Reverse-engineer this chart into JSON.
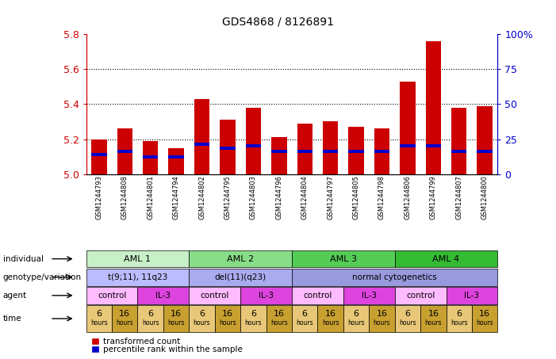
{
  "title": "GDS4868 / 8126891",
  "samples": [
    "GSM1244793",
    "GSM1244808",
    "GSM1244801",
    "GSM1244794",
    "GSM1244802",
    "GSM1244795",
    "GSM1244803",
    "GSM1244796",
    "GSM1244804",
    "GSM1244797",
    "GSM1244805",
    "GSM1244798",
    "GSM1244806",
    "GSM1244799",
    "GSM1244807",
    "GSM1244800"
  ],
  "red_values": [
    5.2,
    5.26,
    5.19,
    5.15,
    5.43,
    5.31,
    5.38,
    5.21,
    5.29,
    5.3,
    5.27,
    5.26,
    5.53,
    5.76,
    5.38,
    5.39
  ],
  "blue_values": [
    5.11,
    5.13,
    5.1,
    5.1,
    5.17,
    5.15,
    5.16,
    5.13,
    5.13,
    5.13,
    5.13,
    5.13,
    5.16,
    5.16,
    5.13,
    5.13
  ],
  "ymin": 5.0,
  "ymax": 5.8,
  "yticks_left": [
    5.0,
    5.2,
    5.4,
    5.6,
    5.8
  ],
  "yticks_right": [
    0,
    25,
    50,
    75,
    100
  ],
  "right_tick_labels": [
    "0",
    "25",
    "50",
    "75",
    "100%"
  ],
  "grid_lines": [
    5.2,
    5.4,
    5.6
  ],
  "bar_color_red": "#cc0000",
  "bar_color_blue": "#0000cc",
  "ind_colors": [
    "#c8f0c8",
    "#88dd88",
    "#55cc55",
    "#33bb33"
  ],
  "geno_color": "#aaaaff",
  "agent_control_color": "#ffbbff",
  "agent_il3_color": "#dd44dd",
  "time_color_6": "#e8c878",
  "time_color_16": "#c8a030"
}
